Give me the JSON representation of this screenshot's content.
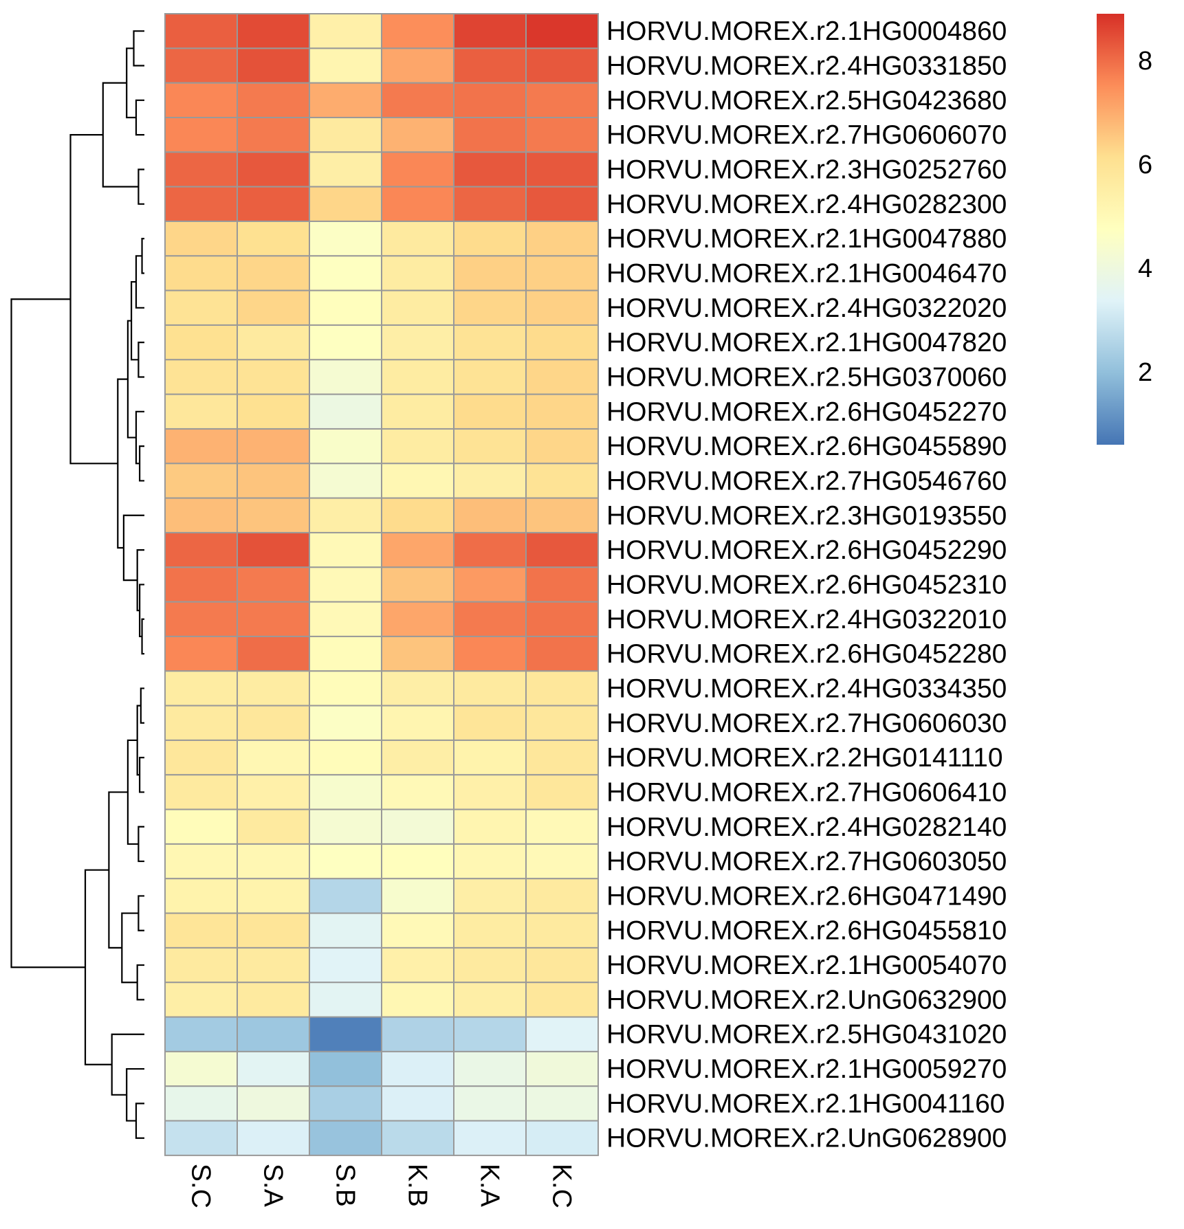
{
  "chart_data": {
    "type": "heatmap",
    "title": "",
    "xlabel": "",
    "ylabel": "",
    "columns": [
      "S.C",
      "S.A",
      "S.B",
      "K.B",
      "K.A",
      "K.C"
    ],
    "rows": [
      "HORVU.MOREX.r2.1HG0004860",
      "HORVU.MOREX.r2.4HG0331850",
      "HORVU.MOREX.r2.5HG0423680",
      "HORVU.MOREX.r2.7HG0606070",
      "HORVU.MOREX.r2.3HG0252760",
      "HORVU.MOREX.r2.4HG0282300",
      "HORVU.MOREX.r2.1HG0047880",
      "HORVU.MOREX.r2.1HG0046470",
      "HORVU.MOREX.r2.4HG0322020",
      "HORVU.MOREX.r2.1HG0047820",
      "HORVU.MOREX.r2.5HG0370060",
      "HORVU.MOREX.r2.6HG0452270",
      "HORVU.MOREX.r2.6HG0455890",
      "HORVU.MOREX.r2.7HG0546760",
      "HORVU.MOREX.r2.3HG0193550",
      "HORVU.MOREX.r2.6HG0452290",
      "HORVU.MOREX.r2.6HG0452310",
      "HORVU.MOREX.r2.4HG0322010",
      "HORVU.MOREX.r2.6HG0452280",
      "HORVU.MOREX.r2.4HG0334350",
      "HORVU.MOREX.r2.7HG0606030",
      "HORVU.MOREX.r2.2HG0141110",
      "HORVU.MOREX.r2.7HG0606410",
      "HORVU.MOREX.r2.4HG0282140",
      "HORVU.MOREX.r2.7HG0603050",
      "HORVU.MOREX.r2.6HG0471490",
      "HORVU.MOREX.r2.6HG0455810",
      "HORVU.MOREX.r2.1HG0054070",
      "HORVU.MOREX.r2.UnG0632900",
      "HORVU.MOREX.r2.5HG0431020",
      "HORVU.MOREX.r2.1HG0059270",
      "HORVU.MOREX.r2.1HG0041160",
      "HORVU.MOREX.r2.UnG0628900"
    ],
    "values": [
      [
        8.2,
        8.5,
        5.4,
        7.5,
        8.6,
        8.8
      ],
      [
        8.1,
        8.4,
        5.2,
        7.1,
        8.2,
        8.3
      ],
      [
        7.6,
        7.8,
        7.0,
        7.8,
        7.9,
        7.8
      ],
      [
        7.6,
        7.8,
        5.7,
        6.9,
        7.9,
        7.8
      ],
      [
        8.1,
        8.3,
        5.5,
        7.6,
        8.3,
        8.3
      ],
      [
        8.1,
        8.2,
        6.3,
        7.6,
        8.1,
        8.3
      ],
      [
        6.3,
        6.1,
        4.6,
        5.7,
        6.2,
        6.4
      ],
      [
        6.2,
        6.3,
        4.7,
        5.6,
        6.4,
        6.4
      ],
      [
        6.0,
        6.3,
        4.8,
        5.6,
        6.3,
        6.4
      ],
      [
        6.1,
        5.7,
        4.7,
        5.5,
        6.0,
        6.2
      ],
      [
        6.0,
        6.0,
        4.3,
        5.6,
        6.0,
        6.3
      ],
      [
        5.8,
        6.1,
        3.9,
        5.6,
        6.2,
        6.3
      ],
      [
        6.9,
        6.9,
        4.5,
        5.6,
        6.0,
        6.3
      ],
      [
        6.5,
        6.6,
        4.3,
        5.1,
        5.5,
        6.0
      ],
      [
        6.7,
        6.6,
        5.5,
        6.2,
        6.7,
        6.6
      ],
      [
        8.1,
        8.4,
        5.0,
        7.1,
        8.0,
        8.3
      ],
      [
        7.9,
        7.8,
        5.0,
        6.6,
        7.3,
        7.9
      ],
      [
        7.8,
        7.8,
        5.0,
        7.1,
        7.8,
        7.9
      ],
      [
        7.6,
        8.0,
        4.9,
        6.6,
        7.6,
        7.9
      ],
      [
        5.6,
        5.6,
        4.9,
        5.5,
        5.7,
        5.8
      ],
      [
        5.7,
        5.8,
        4.6,
        5.2,
        5.9,
        5.8
      ],
      [
        5.8,
        5.1,
        4.9,
        5.5,
        5.3,
        5.8
      ],
      [
        5.7,
        5.4,
        4.4,
        5.0,
        5.4,
        5.8
      ],
      [
        4.9,
        5.7,
        4.3,
        4.2,
        5.2,
        5.0
      ],
      [
        5.1,
        5.1,
        4.7,
        4.8,
        5.1,
        5.0
      ],
      [
        5.3,
        5.3,
        2.6,
        4.4,
        5.5,
        5.7
      ],
      [
        5.9,
        5.9,
        3.5,
        5.0,
        5.6,
        5.7
      ],
      [
        5.7,
        5.7,
        3.4,
        5.4,
        5.7,
        5.8
      ],
      [
        5.5,
        5.7,
        3.5,
        5.1,
        5.5,
        5.8
      ],
      [
        2.3,
        2.2,
        0.8,
        2.5,
        2.6,
        3.4
      ],
      [
        4.3,
        3.5,
        2.0,
        3.3,
        3.8,
        4.1
      ],
      [
        3.7,
        4.0,
        2.4,
        3.3,
        3.8,
        3.9
      ],
      [
        2.9,
        3.3,
        2.1,
        2.7,
        3.3,
        3.2
      ]
    ],
    "color_scale": {
      "min": 0.6,
      "max": 8.9,
      "stops": [
        "#4575B4",
        "#91BFDB",
        "#E0F3F8",
        "#FFFFBF",
        "#FEE090",
        "#FC8D59",
        "#D73027"
      ],
      "ticks": [
        2,
        4,
        6,
        8
      ]
    },
    "legend_position": "top-right",
    "row_dendrogram": true,
    "cell_border_color": "#999999"
  }
}
